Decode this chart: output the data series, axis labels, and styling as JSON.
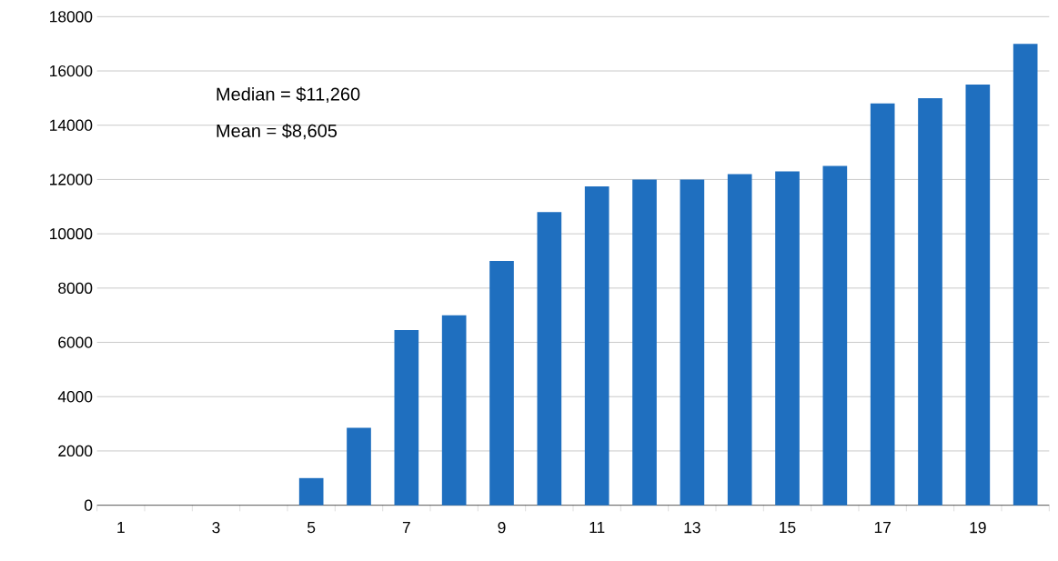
{
  "chart_data": {
    "type": "bar",
    "categories": [
      "1",
      null,
      "3",
      null,
      "5",
      null,
      "7",
      null,
      "9",
      null,
      "11",
      null,
      "13",
      null,
      "15",
      null,
      "17",
      null,
      "19",
      null
    ],
    "values": [
      0,
      0,
      0,
      0,
      1000,
      2850,
      6450,
      7000,
      9000,
      10800,
      11750,
      12000,
      12000,
      12200,
      12300,
      12500,
      14800,
      15000,
      15500,
      17000
    ],
    "color": "#1f6fbf",
    "ylim": [
      0,
      18000
    ],
    "yticks": [
      0,
      2000,
      4000,
      6000,
      8000,
      10000,
      12000,
      14000,
      16000,
      18000
    ],
    "grid": "y",
    "annotations": [
      "Median = $11,260",
      "Mean = $8,605"
    ]
  }
}
